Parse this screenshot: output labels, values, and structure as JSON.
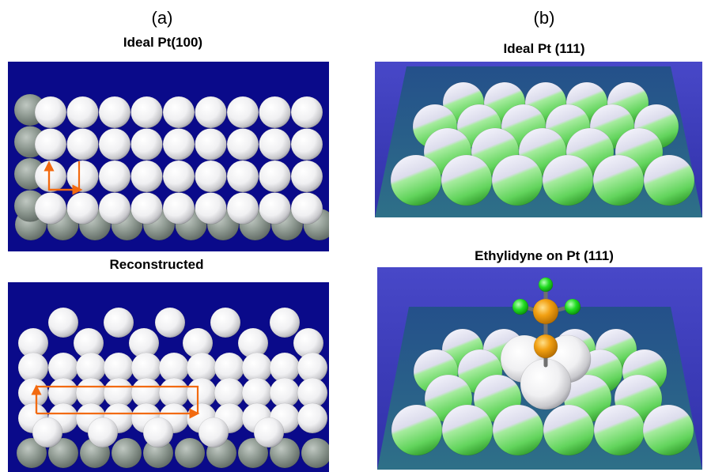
{
  "panel_a": {
    "letter": "(a)",
    "top_title": "Ideal Pt(100)",
    "bottom_title": "Reconstructed"
  },
  "panel_b": {
    "letter": "(b)",
    "top_title": "Ideal Pt (111)",
    "bottom_title": "Ethylidyne on Pt (111)"
  },
  "colors": {
    "background_blue": "#0a0a8a",
    "sphere_white": "#f4f4f6",
    "sphere_gray": "#8a948c",
    "sphere_green": "#7fe07a",
    "carbon_orange": "#f2a012",
    "hydrogen_green": "#22dd22",
    "unit_cell_arrow": "#f26a10",
    "slab_teal": "#2f6a88"
  }
}
